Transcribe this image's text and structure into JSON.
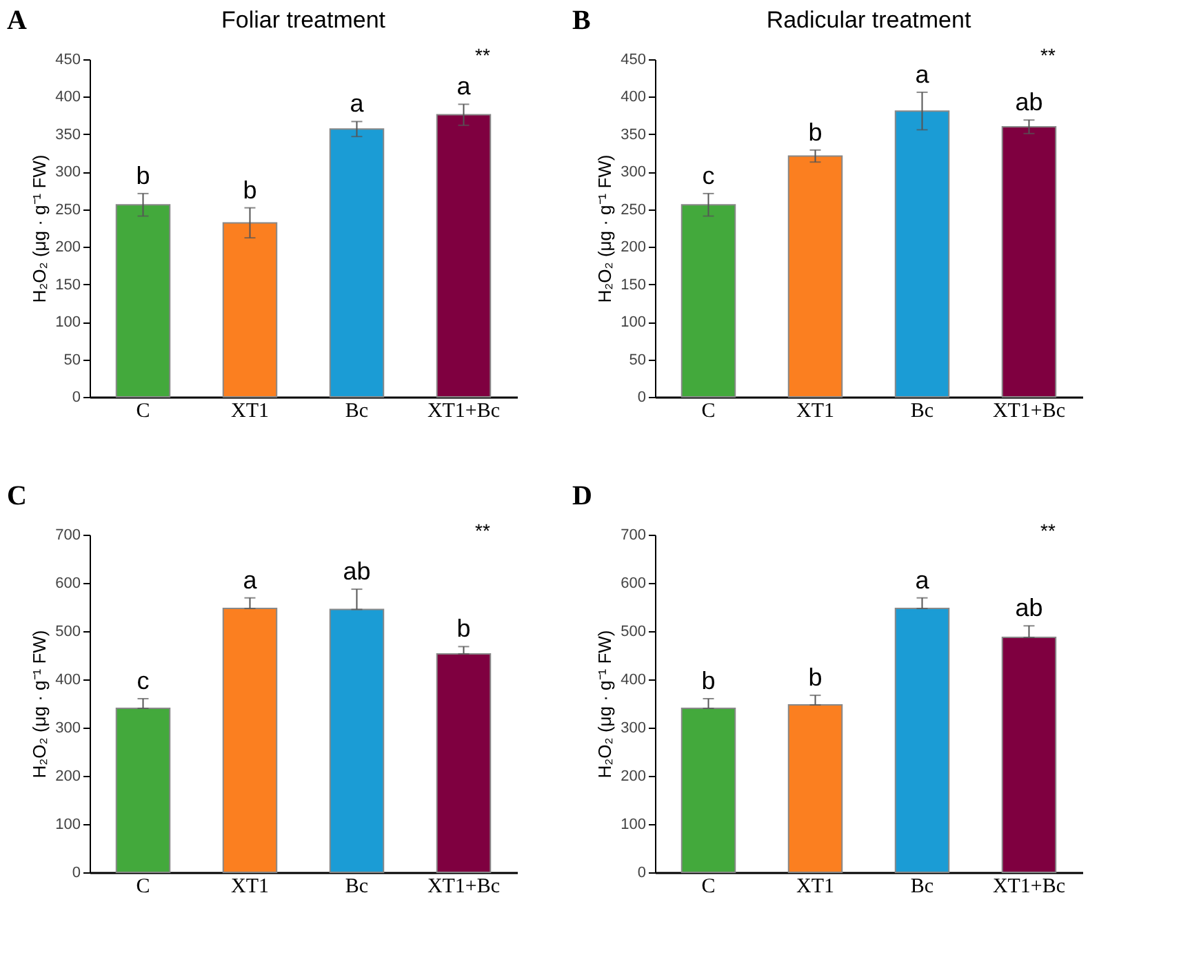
{
  "chart_data": [
    {
      "type": "bar",
      "title": "Foliar treatment",
      "ylabel": "H₂O₂ (μg · g⁻¹ FW)",
      "categories": [
        "C",
        "XT1",
        "Bc",
        "XT1+Bc"
      ],
      "values": [
        256,
        232,
        357,
        376
      ],
      "colors": [
        "#43a93c",
        "#fb7f20",
        "#1b9cd5",
        "#7f0040"
      ],
      "errors": [
        15,
        20,
        10,
        14
      ],
      "ylim": [
        0,
        450
      ],
      "yticks": [
        0,
        50,
        100,
        150,
        200,
        250,
        300,
        350,
        400,
        450
      ],
      "grid": false,
      "annotations": [
        "A",
        {
          "text": "b",
          "x": "C",
          "y": 271
        },
        {
          "text": "b",
          "x": "XT1",
          "y": 252
        },
        {
          "text": "a",
          "x": "Bc",
          "y": 367
        },
        {
          "text": "a",
          "x": "XT1+Bc",
          "y": 390
        },
        "**"
      ]
    },
    {
      "type": "bar",
      "title": "Radicular treatment",
      "ylabel": "H₂O₂ (μg · g⁻¹ FW)",
      "categories": [
        "C",
        "XT1",
        "Bc",
        "XT1+Bc"
      ],
      "values": [
        256,
        321,
        381,
        360
      ],
      "colors": [
        "#43a93c",
        "#fb7f20",
        "#1b9cd5",
        "#7f0040"
      ],
      "errors": [
        15,
        8,
        25,
        9
      ],
      "ylim": [
        0,
        450
      ],
      "yticks": [
        0,
        50,
        100,
        150,
        200,
        250,
        300,
        350,
        400,
        450
      ],
      "grid": false,
      "annotations": [
        "B",
        {
          "text": "c",
          "x": "C",
          "y": 271
        },
        {
          "text": "b",
          "x": "XT1",
          "y": 329
        },
        {
          "text": "a",
          "x": "Bc",
          "y": 406
        },
        {
          "text": "ab",
          "x": "XT1+Bc",
          "y": 369
        },
        "**"
      ]
    },
    {
      "type": "bar",
      "ylabel": "H₂O₂ (μg · g⁻¹ FW)",
      "categories": [
        "C",
        "XT1",
        "Bc",
        "XT1+Bc"
      ],
      "values": [
        340,
        547,
        545,
        453
      ],
      "colors": [
        "#43a93c",
        "#fb7f20",
        "#1b9cd5",
        "#7f0040"
      ],
      "errors": [
        [
          340,
          360
        ],
        [
          547,
          569
        ],
        [
          545,
          587
        ],
        [
          453,
          468
        ]
      ],
      "ylim": [
        0,
        700
      ],
      "yticks": [
        0,
        100,
        200,
        300,
        400,
        500,
        600,
        700
      ],
      "grid": false,
      "annotations": [
        "C",
        {
          "text": "c",
          "x": "C",
          "y": 360
        },
        {
          "text": "a",
          "x": "XT1",
          "y": 569
        },
        {
          "text": "ab",
          "x": "Bc",
          "y": 587
        },
        {
          "text": "b",
          "x": "XT1+Bc",
          "y": 468
        },
        "**"
      ]
    },
    {
      "type": "bar",
      "ylabel": "H₂O₂ (μg · g⁻¹ FW)",
      "categories": [
        "C",
        "XT1",
        "Bc",
        "XT1+Bc"
      ],
      "values": [
        340,
        347,
        547,
        487
      ],
      "colors": [
        "#43a93c",
        "#fb7f20",
        "#1b9cd5",
        "#7f0040"
      ],
      "errors": [
        [
          340,
          360
        ],
        [
          347,
          367
        ],
        [
          547,
          569
        ],
        [
          487,
          511
        ]
      ],
      "ylim": [
        0,
        700
      ],
      "yticks": [
        0,
        100,
        200,
        300,
        400,
        500,
        600,
        700
      ],
      "grid": false,
      "annotations": [
        "D",
        {
          "text": "b",
          "x": "C",
          "y": 360
        },
        {
          "text": "b",
          "x": "XT1",
          "y": 367
        },
        {
          "text": "a",
          "x": "Bc",
          "y": 569
        },
        {
          "text": "ab",
          "x": "XT1+Bc",
          "y": 511
        },
        "**"
      ]
    }
  ]
}
